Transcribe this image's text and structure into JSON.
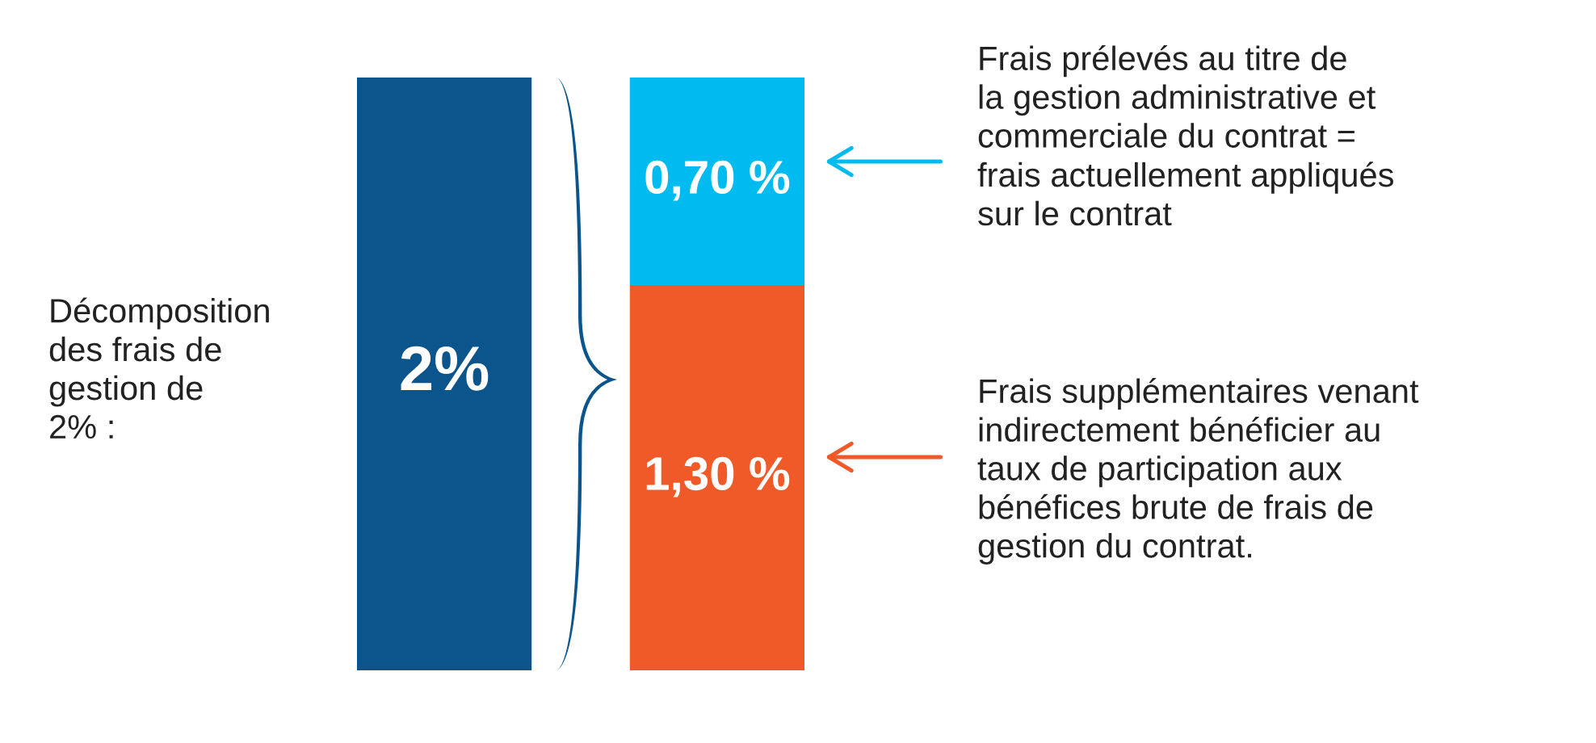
{
  "chart_data": {
    "type": "bar",
    "stacked": true,
    "categories": [
      null,
      null
    ],
    "series": [
      {
        "color": "#0b558c",
        "values": [
          2,
          null
        ],
        "value_labels": [
          "2%",
          null
        ]
      },
      {
        "color": "#f05a28",
        "values": [
          null,
          1.3
        ],
        "value_labels": [
          null,
          "1,30 %"
        ]
      },
      {
        "color": "#00bbf0",
        "values": [
          null,
          0.7
        ],
        "value_labels": [
          null,
          "0,70 %"
        ]
      }
    ],
    "annotations": [
      "Décomposition\ndes frais de\ngestion de\n2% :",
      "Frais prélevés au titre de\nla gestion administrative et\ncommerciale du contrat =\nfrais actuellement appliqués\nsur le contrat",
      "Frais supplémentaires venant\nindirectement bénéficier au\ntaux de participation aux\nbénéfices brute de frais de\ngestion du contrat."
    ]
  }
}
